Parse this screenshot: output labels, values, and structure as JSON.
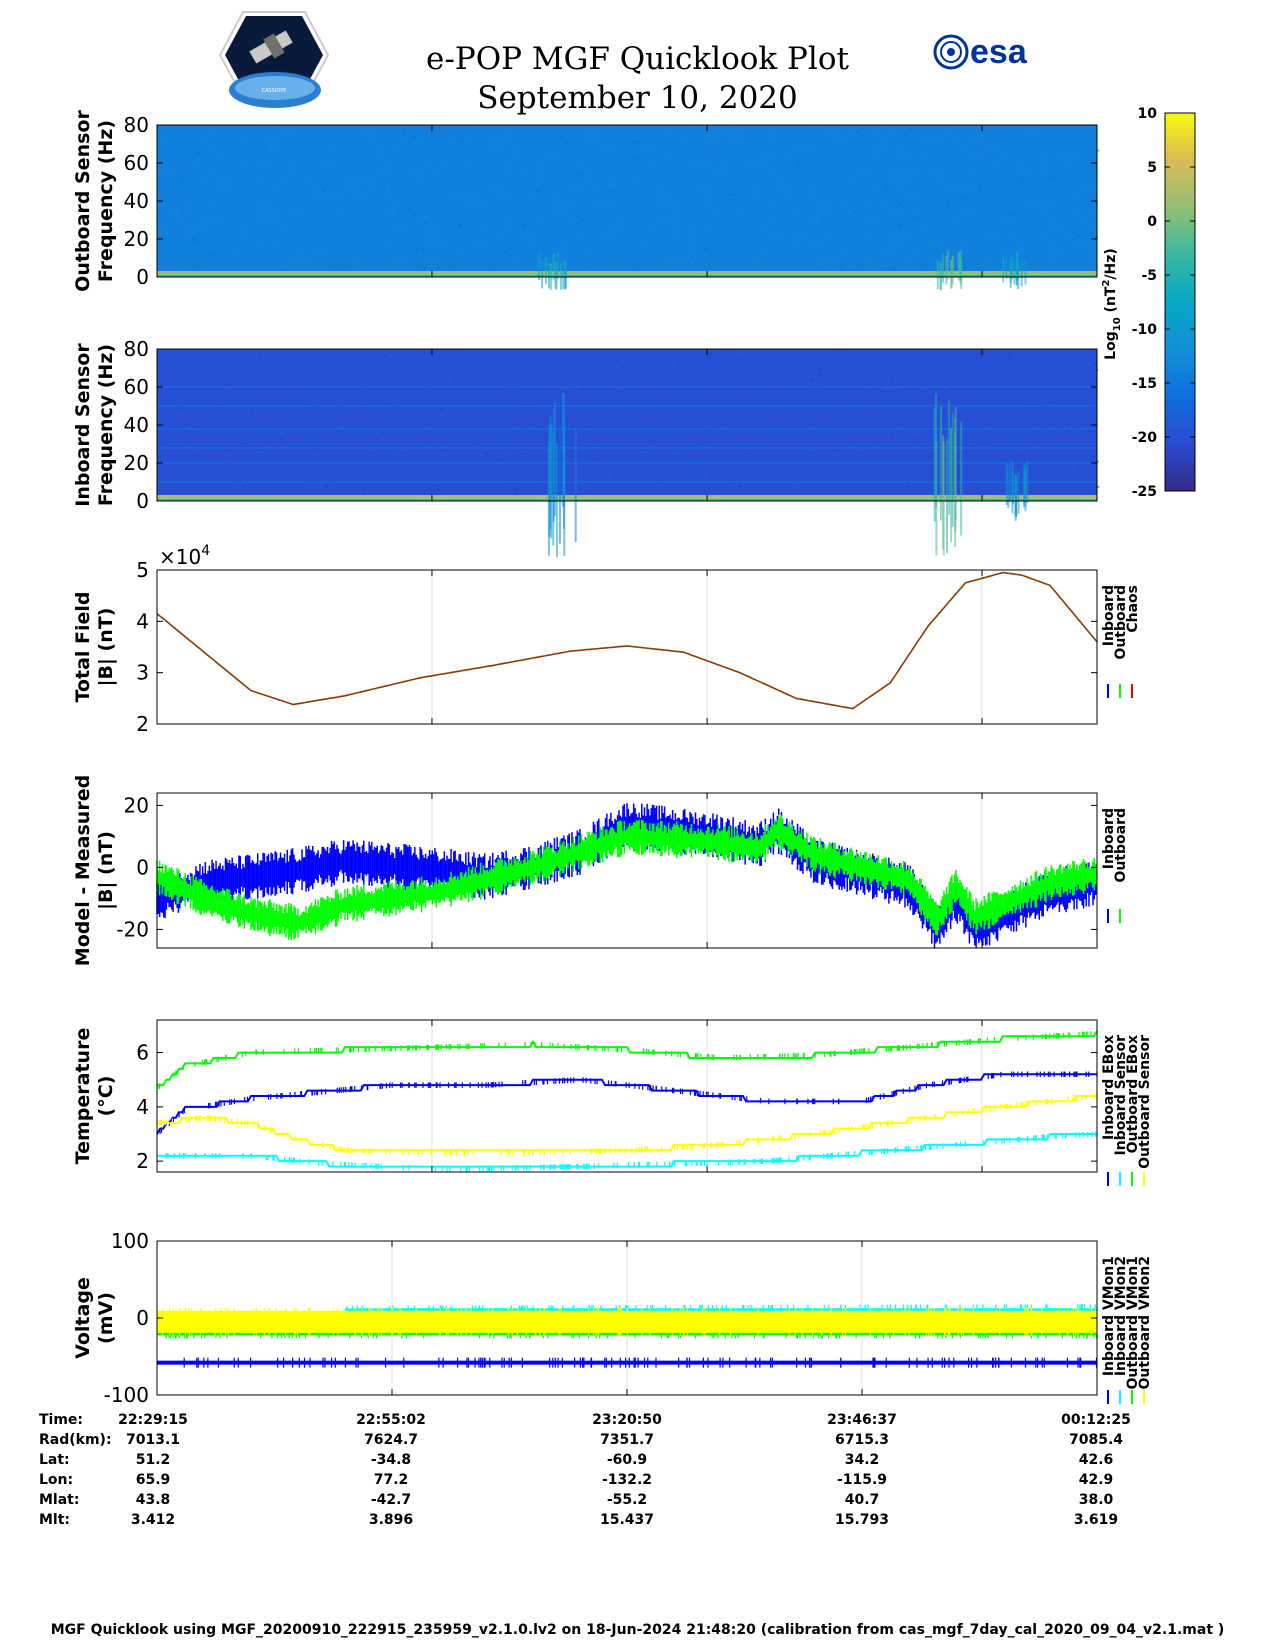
{
  "header": {
    "title": "e-POP MGF Quicklook Plot",
    "date": "September 10, 2020",
    "esa_logo_text": "esa",
    "cassiope_logo_text": "CASSIOPE"
  },
  "colorbar": {
    "label_base": "Log",
    "label_sub": "10",
    "label_units_pre": "(nT",
    "label_units_sup": "2",
    "label_units_post": "/Hz)",
    "ticks": [
      "10",
      "5",
      "0",
      "-5",
      "-10",
      "-15",
      "-20",
      "-25"
    ],
    "range": [
      -25,
      10
    ],
    "colormap": "parula"
  },
  "chart_data": [
    {
      "type": "heatmap",
      "id": "outboard-spectrogram",
      "ylabel_line1": "Outboard Sensor",
      "ylabel_line2": "Frequency (Hz)",
      "ylim": [
        0,
        80
      ],
      "yticks": [
        "80",
        "60",
        "40",
        "20",
        "0"
      ],
      "background_level": -14,
      "low_freq_band_level": 2,
      "bursts": [
        {
          "t": 0.42,
          "level": -4,
          "top_hz": 14
        },
        {
          "t": 0.84,
          "level": 1,
          "top_hz": 15
        },
        {
          "t": 0.91,
          "level": -5,
          "top_hz": 13
        }
      ]
    },
    {
      "type": "heatmap",
      "id": "inboard-spectrogram",
      "ylabel_line1": "Inboard Sensor",
      "ylabel_line2": "Frequency (Hz)",
      "ylim": [
        0,
        80
      ],
      "yticks": [
        "80",
        "60",
        "40",
        "20",
        "0"
      ],
      "background_level": -20,
      "low_freq_band_level": 3,
      "harmonic_lines_hz": [
        10,
        20,
        28,
        38,
        50,
        60
      ],
      "bursts": [
        {
          "t": 0.43,
          "level": -10,
          "top_hz": 60
        },
        {
          "t": 0.84,
          "level": 0,
          "top_hz": 60
        },
        {
          "t": 0.91,
          "level": -8,
          "top_hz": 22
        }
      ]
    },
    {
      "type": "line",
      "id": "total-field",
      "ylabel_line1": "Total Field",
      "ylabel_line2": "|B| (nT)",
      "exponent_label": "×10",
      "exponent_sup": "4",
      "ylim": [
        2,
        5
      ],
      "yticks": [
        "5",
        "4",
        "3",
        "2"
      ],
      "legend": [
        "Inboard",
        "Outboard",
        "Chaos"
      ],
      "legend_colors": [
        "#0000ff",
        "#00ff00",
        "#ff0000"
      ],
      "series": [
        {
          "name": "Chaos",
          "color": "#8b3a00",
          "x": [
            0,
            0.05,
            0.1,
            0.145,
            0.2,
            0.28,
            0.36,
            0.44,
            0.5,
            0.56,
            0.62,
            0.68,
            0.74,
            0.78,
            0.82,
            0.86,
            0.9,
            0.92,
            0.95,
            1.0
          ],
          "values": [
            4.15,
            3.4,
            2.65,
            2.38,
            2.55,
            2.9,
            3.15,
            3.42,
            3.52,
            3.4,
            3.0,
            2.5,
            2.3,
            2.8,
            3.9,
            4.75,
            4.95,
            4.9,
            4.7,
            3.6
          ]
        }
      ]
    },
    {
      "type": "line",
      "id": "model-minus-measured",
      "ylabel_line1": "Model - Measured",
      "ylabel_line2": "|B| (nT)",
      "ylim": [
        -26,
        24
      ],
      "yticks": [
        "20",
        "0",
        "-20"
      ],
      "legend": [
        "Inboard",
        "Outboard"
      ],
      "legend_colors": [
        "#0000ff",
        "#00ff00"
      ],
      "series": [
        {
          "name": "Inboard",
          "color": "#0000ff",
          "x": [
            0,
            0.05,
            0.1,
            0.15,
            0.2,
            0.3,
            0.35,
            0.4,
            0.45,
            0.5,
            0.55,
            0.6,
            0.64,
            0.66,
            0.7,
            0.75,
            0.8,
            0.83,
            0.85,
            0.87,
            0.9,
            0.95,
            1.0
          ],
          "values": [
            -10,
            -5,
            -3,
            -1,
            2,
            -1,
            -3,
            0,
            5,
            14,
            12,
            10,
            7,
            12,
            2,
            -2,
            -6,
            -20,
            -10,
            -20,
            -16,
            -8,
            -5
          ],
          "spread": 5
        },
        {
          "name": "Outboard",
          "color": "#00ff00",
          "x": [
            0,
            0.05,
            0.1,
            0.15,
            0.2,
            0.3,
            0.35,
            0.4,
            0.45,
            0.5,
            0.55,
            0.6,
            0.64,
            0.66,
            0.7,
            0.75,
            0.8,
            0.83,
            0.85,
            0.87,
            0.9,
            0.95,
            1.0
          ],
          "values": [
            -3,
            -10,
            -15,
            -18,
            -12,
            -8,
            -4,
            0,
            5,
            10,
            9,
            8,
            6,
            12,
            4,
            0,
            -4,
            -17,
            -6,
            -16,
            -12,
            -5,
            -2
          ],
          "spread": 4
        }
      ]
    },
    {
      "type": "line",
      "id": "temperature",
      "ylabel_line1": "Temperature",
      "ylabel_line2": "(°C)",
      "ylim": [
        1.6,
        7.2
      ],
      "yticks": [
        "6",
        "4",
        "2"
      ],
      "legend": [
        "Inboard EBox",
        "Inboard Sensor",
        "Outboard EBox",
        "Outboard Sensor"
      ],
      "legend_colors": [
        "#0000ff",
        "#00ffff",
        "#00ff00",
        "#ffff00"
      ],
      "series": [
        {
          "name": "Inboard EBox",
          "color": "#0000ff",
          "x": [
            0,
            0.03,
            0.1,
            0.25,
            0.35,
            0.45,
            0.55,
            0.65,
            0.75,
            0.82,
            0.9,
            1.0
          ],
          "values": [
            3.0,
            3.9,
            4.3,
            4.8,
            4.8,
            5.0,
            4.6,
            4.2,
            4.2,
            4.8,
            5.2,
            5.2
          ]
        },
        {
          "name": "Inboard Sensor",
          "color": "#00ffff",
          "x": [
            0,
            0.1,
            0.18,
            0.3,
            0.45,
            0.55,
            0.65,
            0.75,
            0.85,
            0.95,
            1.0
          ],
          "values": [
            2.2,
            2.2,
            1.9,
            1.7,
            1.8,
            1.9,
            2.0,
            2.3,
            2.6,
            2.9,
            3.0
          ]
        },
        {
          "name": "Outboard EBox",
          "color": "#00ff00",
          "x": [
            0,
            0.03,
            0.1,
            0.2,
            0.3,
            0.4,
            0.5,
            0.6,
            0.7,
            0.8,
            0.9,
            1.0
          ],
          "values": [
            4.7,
            5.5,
            6.0,
            6.1,
            6.2,
            6.3,
            6.1,
            5.8,
            5.9,
            6.2,
            6.5,
            6.7
          ]
        },
        {
          "name": "Outboard Sensor",
          "color": "#ffff00",
          "x": [
            0,
            0.05,
            0.1,
            0.15,
            0.2,
            0.3,
            0.4,
            0.5,
            0.6,
            0.7,
            0.8,
            0.9,
            1.0
          ],
          "values": [
            3.4,
            3.6,
            3.4,
            2.8,
            2.4,
            2.3,
            2.3,
            2.4,
            2.6,
            3.0,
            3.5,
            4.0,
            4.4
          ]
        }
      ]
    },
    {
      "type": "line",
      "id": "voltage",
      "ylabel_line1": "Voltage",
      "ylabel_line2": "(mV)",
      "ylim": [
        -100,
        100
      ],
      "yticks": [
        "100",
        "0",
        "-100"
      ],
      "legend": [
        "Inboard VMon1",
        "Inboard VMon2",
        "Outboard VMon1",
        "Outboard VMon2"
      ],
      "legend_colors": [
        "#0000ff",
        "#00ffff",
        "#00ff00",
        "#ffff00"
      ],
      "series": [
        {
          "name": "Inboard VMon1",
          "color": "#0000ff",
          "x": [
            0,
            1
          ],
          "values": [
            -58,
            -58
          ]
        },
        {
          "name": "Inboard VMon2",
          "color": "#00ffff",
          "x": [
            0,
            0.1,
            0.2,
            1
          ],
          "values": [
            2,
            2,
            8,
            10
          ]
        },
        {
          "name": "Outboard VMon1",
          "color": "#00ff00",
          "x": [
            0,
            1
          ],
          "values": [
            -20,
            -20
          ]
        },
        {
          "name": "Outboard VMon2",
          "color": "#ffff00",
          "x": [
            0,
            1
          ],
          "values": [
            -5,
            -5
          ]
        }
      ]
    }
  ],
  "table": {
    "row_labels": [
      "Time:",
      "Rad(km):",
      "Lat:",
      "Lon:",
      "Mlat:",
      "Mlt:"
    ],
    "columns": [
      [
        "22:29:15",
        "7013.1",
        "51.2",
        "65.9",
        "43.8",
        "3.412"
      ],
      [
        "22:55:02",
        "7624.7",
        "-34.8",
        "77.2",
        "-42.7",
        "3.896"
      ],
      [
        "23:20:50",
        "7351.7",
        "-60.9",
        "-132.2",
        "-55.2",
        "15.437"
      ],
      [
        "23:46:37",
        "6715.3",
        "34.2",
        "-115.9",
        "40.7",
        "15.793"
      ],
      [
        "00:12:25",
        "7085.4",
        "42.6",
        "42.9",
        "38.0",
        "3.619"
      ]
    ]
  },
  "footer": "MGF Quicklook using MGF_20200910_222915_235959_v2.1.0.lv2 on 18-Jun-2024 21:48:20 (calibration from cas_mgf_7day_cal_2020_09_04_v2.1.mat )"
}
